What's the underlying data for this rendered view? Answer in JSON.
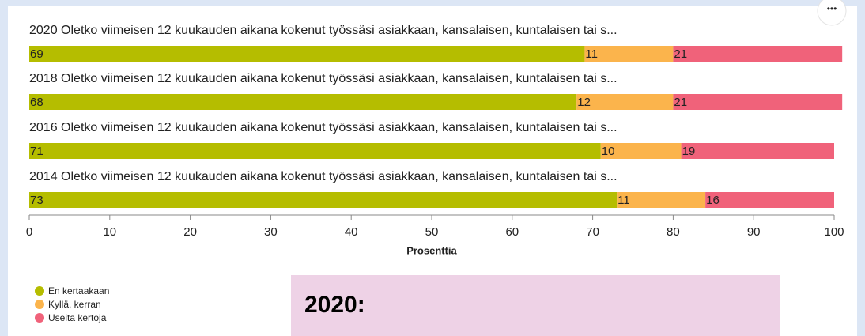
{
  "chart_data": {
    "type": "bar",
    "orientation": "horizontal",
    "stacked": true,
    "categories": [
      "2020 Oletko viimeisen 12 kuukauden aikana kokenut työssäsi asiakkaan, kansalaisen, kuntalaisen tai s...",
      "2018 Oletko viimeisen 12 kuukauden aikana kokenut työssäsi asiakkaan, kansalaisen, kuntalaisen tai s...",
      "2016 Oletko viimeisen 12 kuukauden aikana kokenut työssäsi asiakkaan, kansalaisen, kuntalaisen tai s...",
      "2014 Oletko viimeisen 12 kuukauden aikana kokenut työssäsi asiakkaan, kansalaisen, kuntalaisen tai s..."
    ],
    "series": [
      {
        "name": "En kertaakaan",
        "color": "#b5bd00",
        "values": [
          69,
          68,
          71,
          73
        ]
      },
      {
        "name": "Kyllä, kerran",
        "color": "#fbb44c",
        "values": [
          11,
          12,
          10,
          11
        ]
      },
      {
        "name": "Useita kertoja",
        "color": "#f0627a",
        "values": [
          21,
          21,
          19,
          16
        ]
      }
    ],
    "xlim": [
      0,
      100
    ],
    "xticks": [
      0,
      10,
      20,
      30,
      40,
      50,
      60,
      70,
      80,
      90,
      100
    ],
    "xlabel": "Prosenttia",
    "legend": "bottom-left",
    "annotation": "2020:"
  }
}
